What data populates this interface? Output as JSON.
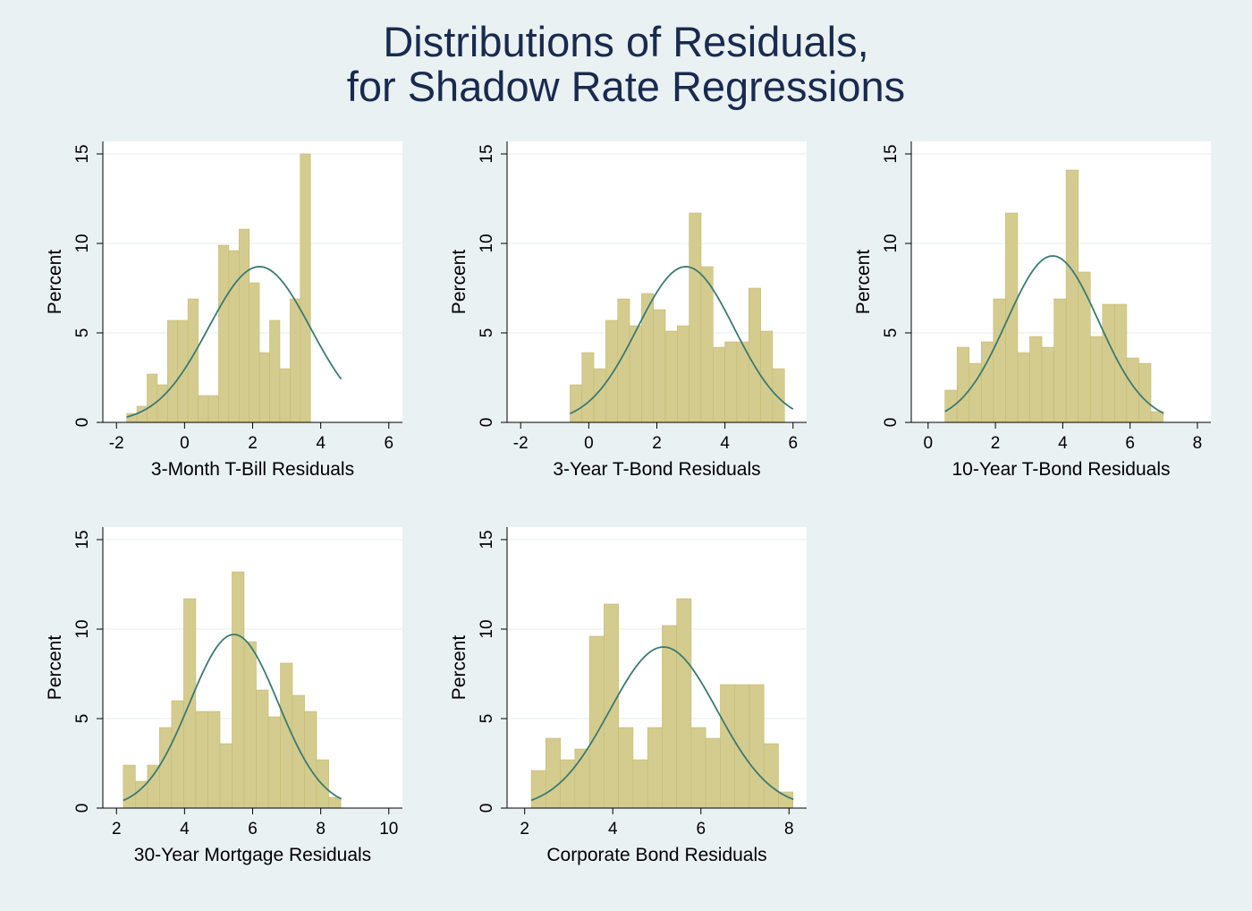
{
  "title": {
    "line1": "Distributions of Residuals,",
    "line2": "for Shadow Rate Regressions"
  },
  "colors": {
    "background": "#eaf1f3",
    "plot_background": "#ffffff",
    "bar_fill": "#d4cc8e",
    "bar_stroke": "#c4ba76",
    "curve": "#3c7a72",
    "grid": "#e8ecee",
    "title": "#1a2a4f"
  },
  "chart_data": [
    {
      "type": "bar",
      "xlabel": "3-Month T-Bill Residuals",
      "ylabel": "Percent",
      "xlim": [
        -2.4,
        6.4
      ],
      "ylim": [
        0,
        15.7
      ],
      "xticks": [
        -2,
        0,
        2,
        4,
        6
      ],
      "yticks": [
        0,
        5,
        10,
        15
      ],
      "bins": {
        "start": -1.7,
        "width": 0.3,
        "values": [
          0.5,
          0.9,
          2.7,
          2.1,
          5.7,
          5.7,
          6.9,
          1.5,
          1.5,
          9.9,
          9.6,
          10.8,
          7.8,
          3.9,
          5.7,
          3.0,
          6.9,
          15.0
        ]
      },
      "normal_curve": {
        "mean": 2.2,
        "sd": 1.5,
        "peak": 8.7,
        "x_range": [
          -1.7,
          4.6
        ]
      }
    },
    {
      "type": "bar",
      "xlabel": "3-Year T-Bond Residuals",
      "ylabel": "Percent",
      "xlim": [
        -2.4,
        6.4
      ],
      "ylim": [
        0,
        15.7
      ],
      "xticks": [
        -2,
        0,
        2,
        4,
        6
      ],
      "yticks": [
        0,
        5,
        10,
        15
      ],
      "bins": {
        "start": -0.55,
        "width": 0.35,
        "values": [
          2.1,
          3.9,
          3.0,
          5.7,
          6.9,
          5.4,
          7.2,
          6.3,
          5.1,
          5.4,
          11.7,
          8.7,
          4.2,
          4.5,
          4.5,
          7.5,
          5.1,
          3.0
        ]
      },
      "normal_curve": {
        "mean": 2.85,
        "sd": 1.42,
        "peak": 8.7,
        "x_range": [
          -0.55,
          6.0
        ]
      }
    },
    {
      "type": "bar",
      "xlabel": "10-Year T-Bond Residuals",
      "ylabel": "Percent",
      "xlim": [
        -0.5,
        8.4
      ],
      "ylim": [
        0,
        15.7
      ],
      "xticks": [
        0,
        2,
        4,
        6,
        8
      ],
      "yticks": [
        0,
        5,
        10,
        15
      ],
      "bins": {
        "start": 0.5,
        "width": 0.36,
        "values": [
          1.8,
          4.2,
          3.3,
          4.5,
          6.9,
          11.7,
          3.9,
          4.8,
          4.2,
          6.9,
          14.1,
          8.4,
          4.8,
          6.6,
          6.6,
          3.6,
          3.3,
          0.6
        ]
      },
      "normal_curve": {
        "mean": 3.7,
        "sd": 1.37,
        "peak": 9.3,
        "x_range": [
          0.5,
          7.0
        ]
      }
    },
    {
      "type": "bar",
      "xlabel": "30-Year Mortgage Residuals",
      "ylabel": "Percent",
      "xlim": [
        1.6,
        10.4
      ],
      "ylim": [
        0,
        15.7
      ],
      "xticks": [
        2,
        4,
        6,
        8,
        10
      ],
      "yticks": [
        0,
        5,
        10,
        15
      ],
      "bins": {
        "start": 2.2,
        "width": 0.355,
        "values": [
          2.4,
          1.5,
          2.4,
          4.5,
          6.0,
          11.7,
          5.4,
          5.4,
          3.6,
          13.2,
          9.3,
          6.6,
          5.1,
          8.1,
          6.3,
          5.4,
          2.7,
          0.6
        ]
      },
      "normal_curve": {
        "mean": 5.45,
        "sd": 1.3,
        "peak": 9.7,
        "x_range": [
          2.2,
          8.6
        ]
      }
    },
    {
      "type": "bar",
      "xlabel": "Corporate Bond Residuals",
      "ylabel": "Percent",
      "xlim": [
        1.6,
        8.4
      ],
      "ylim": [
        0,
        15.7
      ],
      "xticks": [
        2,
        4,
        6,
        8
      ],
      "yticks": [
        0,
        5,
        10,
        15
      ],
      "bins": {
        "start": 2.15,
        "width": 0.33,
        "values": [
          2.1,
          3.9,
          2.7,
          3.3,
          9.6,
          11.4,
          4.5,
          2.7,
          4.5,
          10.2,
          11.7,
          4.5,
          3.9,
          6.9,
          6.9,
          6.9,
          3.6,
          0.9
        ]
      },
      "normal_curve": {
        "mean": 5.15,
        "sd": 1.22,
        "peak": 9.0,
        "x_range": [
          2.15,
          8.1
        ]
      }
    }
  ]
}
